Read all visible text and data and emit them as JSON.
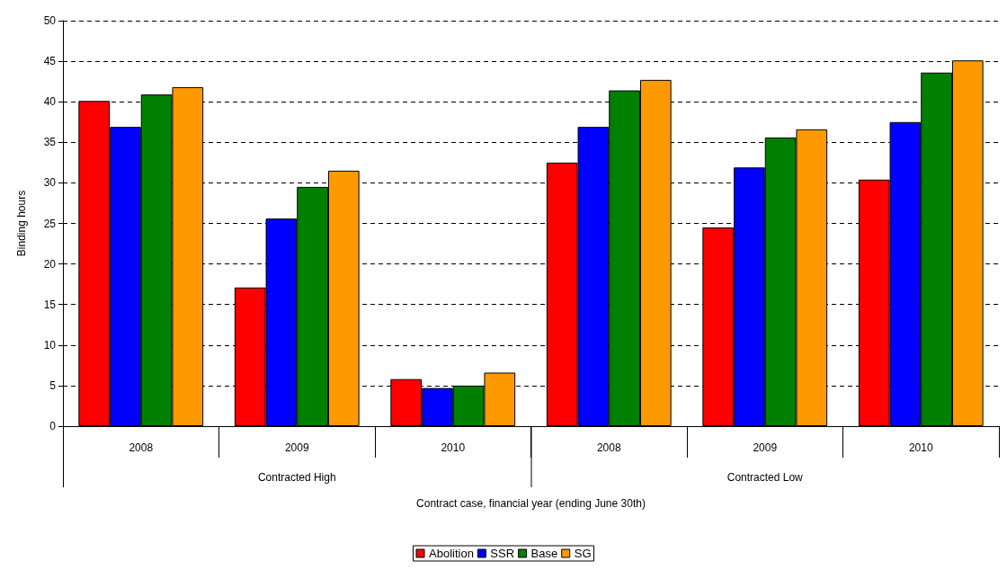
{
  "chart_data": {
    "type": "bar",
    "xlabel": "Contract case, financial year (ending June 30th)",
    "ylabel": "Binding hours",
    "categories": [
      "2008",
      "2009",
      "2010",
      "2008",
      "2009",
      "2010"
    ],
    "annotations": [
      "Contracted High",
      "Contracted Low"
    ],
    "series": [
      {
        "name": "Abolition",
        "color": "#ff0000",
        "values": [
          40.1,
          17.1,
          5.8,
          32.5,
          24.5,
          30.4
        ]
      },
      {
        "name": "SSR",
        "color": "#0000ff",
        "values": [
          36.9,
          25.6,
          4.7,
          36.9,
          31.9,
          37.5
        ]
      },
      {
        "name": "Base",
        "color": "#008000",
        "values": [
          40.9,
          29.5,
          5.0,
          41.4,
          35.6,
          43.6
        ]
      },
      {
        "name": "SG",
        "color": "#ff9900",
        "values": [
          41.8,
          31.5,
          6.6,
          42.7,
          36.6,
          45.1
        ]
      }
    ],
    "ylim": [
      0,
      50
    ],
    "yticks": [
      0,
      5,
      10,
      15,
      20,
      25,
      30,
      35,
      40,
      45,
      50
    ],
    "grid": "y",
    "legend": "bottom"
  }
}
